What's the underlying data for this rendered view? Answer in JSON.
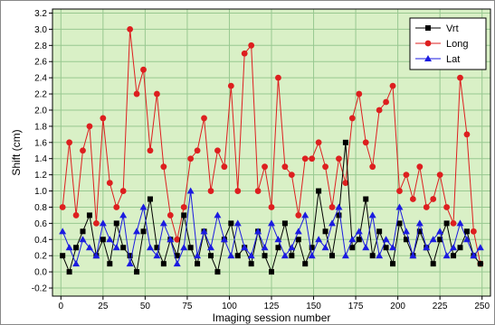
{
  "chart_data": {
    "type": "line",
    "title": "",
    "xlabel": "Imaging session number",
    "ylabel": "Shift (cm)",
    "xlim": [
      -5,
      255
    ],
    "ylim": [
      -0.3,
      3.25
    ],
    "x_ticks": [
      0,
      25,
      50,
      75,
      100,
      125,
      150,
      175,
      200,
      225,
      250
    ],
    "y_ticks": [
      -0.2,
      0.0,
      0.2,
      0.4,
      0.6,
      0.8,
      1.0,
      1.2,
      1.4,
      1.6,
      1.8,
      2.0,
      2.2,
      2.4,
      2.6,
      2.8,
      3.0,
      3.2
    ],
    "grid": true,
    "plot_background": "#d9f0c6",
    "grid_color": "#98c890",
    "legend_position": "top-right",
    "x": [
      1,
      5,
      9,
      13,
      17,
      21,
      25,
      29,
      33,
      37,
      41,
      45,
      49,
      53,
      57,
      61,
      65,
      69,
      73,
      77,
      81,
      85,
      89,
      93,
      97,
      101,
      105,
      109,
      113,
      117,
      121,
      125,
      129,
      133,
      137,
      141,
      145,
      149,
      153,
      157,
      161,
      165,
      169,
      173,
      177,
      181,
      185,
      189,
      193,
      197,
      201,
      205,
      209,
      213,
      217,
      221,
      225,
      229,
      233,
      237,
      241,
      245,
      249
    ],
    "series": [
      {
        "name": "Vrt",
        "color": "#000000",
        "marker": "square",
        "values": [
          0.2,
          0.0,
          0.3,
          0.5,
          0.7,
          0.2,
          0.4,
          0.1,
          0.6,
          0.3,
          0.2,
          0.0,
          0.5,
          0.9,
          0.3,
          0.1,
          0.4,
          0.2,
          0.7,
          0.3,
          0.1,
          0.5,
          0.2,
          0.0,
          0.4,
          0.6,
          0.2,
          0.3,
          0.1,
          0.5,
          0.2,
          0.0,
          0.3,
          0.6,
          0.2,
          0.4,
          0.1,
          0.3,
          1.0,
          0.5,
          0.2,
          0.7,
          1.6,
          0.3,
          0.4,
          0.9,
          0.2,
          0.5,
          0.3,
          0.1,
          0.6,
          0.4,
          0.2,
          0.5,
          0.3,
          0.1,
          0.4,
          0.6,
          0.2,
          0.3,
          0.5,
          0.2,
          0.1
        ]
      },
      {
        "name": "Long",
        "color": "#dd1f1f",
        "marker": "circle",
        "values": [
          0.8,
          1.6,
          0.7,
          1.5,
          1.8,
          0.6,
          1.9,
          1.1,
          0.8,
          1.0,
          3.0,
          2.2,
          2.5,
          1.5,
          2.2,
          1.3,
          0.7,
          0.4,
          0.8,
          1.4,
          1.5,
          1.9,
          1.0,
          1.5,
          1.3,
          2.3,
          1.0,
          2.7,
          2.8,
          1.0,
          1.3,
          0.8,
          2.4,
          1.3,
          1.2,
          0.7,
          1.4,
          1.4,
          1.6,
          1.3,
          0.8,
          1.4,
          1.1,
          1.9,
          2.2,
          1.6,
          1.3,
          2.0,
          2.1,
          2.3,
          1.0,
          1.2,
          0.9,
          1.3,
          0.8,
          0.9,
          1.2,
          0.8,
          0.6,
          2.4,
          1.7,
          0.5,
          0.1
        ]
      },
      {
        "name": "Lat",
        "color": "#1b1be0",
        "marker": "triangle",
        "values": [
          0.5,
          0.3,
          0.1,
          0.4,
          0.3,
          0.2,
          0.6,
          0.4,
          0.3,
          0.7,
          0.1,
          0.5,
          0.8,
          0.3,
          0.2,
          0.6,
          0.4,
          0.1,
          0.3,
          1.0,
          0.2,
          0.5,
          0.3,
          0.7,
          0.4,
          0.2,
          0.6,
          0.3,
          0.2,
          0.5,
          0.3,
          0.6,
          0.4,
          0.2,
          0.3,
          0.5,
          0.7,
          0.2,
          0.4,
          0.3,
          0.6,
          0.8,
          0.2,
          0.4,
          0.5,
          0.3,
          0.7,
          0.2,
          0.4,
          0.3,
          0.8,
          0.5,
          0.2,
          0.6,
          0.3,
          0.4,
          0.5,
          0.2,
          0.3,
          0.6,
          0.4,
          0.2,
          0.3
        ]
      }
    ]
  }
}
